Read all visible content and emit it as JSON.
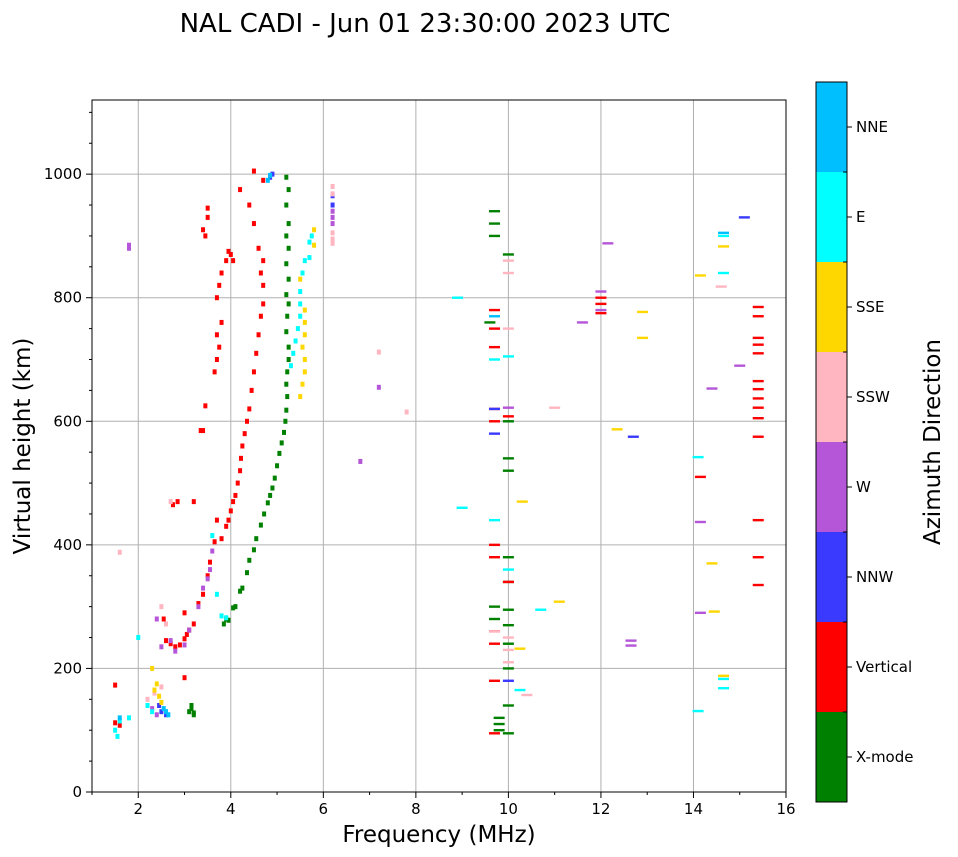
{
  "chart_data": {
    "type": "scatter",
    "title": "NAL CADI - Jun 01 23:30:00 2023 UTC",
    "xlabel": "Frequency (MHz)",
    "ylabel": "Virtual height (km)",
    "xlim": [
      1,
      16
    ],
    "ylim": [
      0,
      1120
    ],
    "xticks": [
      2,
      4,
      6,
      8,
      10,
      12,
      14,
      16
    ],
    "xtick_labels": [
      "2",
      "4",
      "6",
      "8",
      "10",
      "12",
      "14",
      "16"
    ],
    "yticks": [
      0,
      200,
      400,
      600,
      800,
      1000
    ],
    "ytick_labels": [
      "0",
      "200",
      "400",
      "600",
      "800",
      "1000"
    ],
    "grid": true,
    "colorbar": {
      "label": "Azimuth Direction",
      "categories": [
        "X-mode",
        "Vertical",
        "NNW",
        "W",
        "SSW",
        "SSE",
        "E",
        "NNE"
      ],
      "colors": [
        "#008000",
        "#ff0000",
        "#3a3aff",
        "#b556d8",
        "#ffb6c1",
        "#ffd700",
        "#00ffff",
        "#00bfff"
      ]
    },
    "series": [
      {
        "name": "X-mode",
        "points": [
          [
            3.1,
            130
          ],
          [
            3.15,
            135
          ],
          [
            3.2,
            128
          ],
          [
            3.15,
            140
          ],
          [
            3.2,
            125
          ],
          [
            3.85,
            272
          ],
          [
            3.9,
            280
          ],
          [
            3.95,
            278
          ],
          [
            4.05,
            298
          ],
          [
            4.1,
            300
          ],
          [
            4.2,
            325
          ],
          [
            4.25,
            330
          ],
          [
            4.35,
            355
          ],
          [
            4.4,
            375
          ],
          [
            4.5,
            392
          ],
          [
            4.55,
            410
          ],
          [
            4.65,
            432
          ],
          [
            4.72,
            450
          ],
          [
            4.8,
            468
          ],
          [
            4.85,
            480
          ],
          [
            4.9,
            492
          ],
          [
            4.95,
            508
          ],
          [
            5.0,
            528
          ],
          [
            5.05,
            548
          ],
          [
            5.1,
            565
          ],
          [
            5.15,
            582
          ],
          [
            5.18,
            600
          ],
          [
            5.2,
            618
          ],
          [
            5.22,
            640
          ],
          [
            5.2,
            660
          ],
          [
            5.22,
            680
          ],
          [
            5.25,
            700
          ],
          [
            5.25,
            720
          ],
          [
            5.2,
            745
          ],
          [
            5.22,
            770
          ],
          [
            5.25,
            790
          ],
          [
            5.2,
            805
          ],
          [
            5.25,
            830
          ],
          [
            5.2,
            855
          ],
          [
            5.25,
            880
          ],
          [
            5.2,
            900
          ],
          [
            5.25,
            920
          ],
          [
            5.2,
            950
          ],
          [
            5.25,
            975
          ],
          [
            5.2,
            995
          ],
          [
            9.6,
            760
          ],
          [
            9.7,
            300
          ],
          [
            9.7,
            280
          ],
          [
            9.7,
            940
          ],
          [
            9.7,
            920
          ],
          [
            9.7,
            900
          ],
          [
            10.0,
            95
          ],
          [
            10.0,
            140
          ],
          [
            10.0,
            200
          ],
          [
            10.0,
            240
          ],
          [
            10.0,
            270
          ],
          [
            10.0,
            295
          ],
          [
            10.0,
            340
          ],
          [
            10.0,
            380
          ],
          [
            10.0,
            520
          ],
          [
            10.0,
            540
          ],
          [
            10.0,
            600
          ],
          [
            10.0,
            870
          ],
          [
            9.8,
            100
          ],
          [
            9.8,
            110
          ],
          [
            9.8,
            120
          ]
        ]
      },
      {
        "name": "Vertical",
        "points": [
          [
            1.5,
            173
          ],
          [
            1.5,
            112
          ],
          [
            1.6,
            108
          ],
          [
            2.55,
            280
          ],
          [
            2.6,
            245
          ],
          [
            2.7,
            240
          ],
          [
            2.8,
            235
          ],
          [
            2.9,
            238
          ],
          [
            3.0,
            248
          ],
          [
            3.0,
            290
          ],
          [
            3.0,
            185
          ],
          [
            3.05,
            255
          ],
          [
            3.1,
            262
          ],
          [
            3.2,
            272
          ],
          [
            3.3,
            305
          ],
          [
            3.4,
            320
          ],
          [
            3.5,
            350
          ],
          [
            3.55,
            372
          ],
          [
            3.65,
            405
          ],
          [
            3.7,
            440
          ],
          [
            2.75,
            465
          ],
          [
            2.85,
            470
          ],
          [
            3.2,
            470
          ],
          [
            3.35,
            585
          ],
          [
            3.4,
            585
          ],
          [
            3.45,
            625
          ],
          [
            3.5,
            930
          ],
          [
            3.5,
            945
          ],
          [
            3.45,
            900
          ],
          [
            3.4,
            910
          ],
          [
            3.7,
            700
          ],
          [
            3.75,
            720
          ],
          [
            3.7,
            740
          ],
          [
            3.65,
            680
          ],
          [
            3.8,
            760
          ],
          [
            3.7,
            800
          ],
          [
            3.75,
            820
          ],
          [
            3.8,
            840
          ],
          [
            3.9,
            860
          ],
          [
            3.95,
            875
          ],
          [
            4.0,
            870
          ],
          [
            4.05,
            860
          ],
          [
            3.8,
            410
          ],
          [
            3.9,
            430
          ],
          [
            3.95,
            440
          ],
          [
            4.0,
            455
          ],
          [
            4.05,
            470
          ],
          [
            4.1,
            480
          ],
          [
            4.15,
            500
          ],
          [
            4.2,
            520
          ],
          [
            4.22,
            540
          ],
          [
            4.25,
            560
          ],
          [
            4.3,
            580
          ],
          [
            4.35,
            600
          ],
          [
            4.4,
            620
          ],
          [
            4.45,
            650
          ],
          [
            4.5,
            680
          ],
          [
            4.55,
            710
          ],
          [
            4.6,
            740
          ],
          [
            4.65,
            770
          ],
          [
            4.7,
            790
          ],
          [
            4.7,
            820
          ],
          [
            4.65,
            840
          ],
          [
            4.7,
            860
          ],
          [
            4.6,
            880
          ],
          [
            4.5,
            920
          ],
          [
            4.4,
            950
          ],
          [
            4.2,
            975
          ],
          [
            4.5,
            1005
          ],
          [
            4.7,
            990
          ],
          [
            9.7,
            95
          ],
          [
            9.7,
            180
          ],
          [
            9.7,
            240
          ],
          [
            9.7,
            260
          ],
          [
            9.7,
            380
          ],
          [
            9.7,
            400
          ],
          [
            9.7,
            600
          ],
          [
            9.7,
            620
          ],
          [
            9.7,
            720
          ],
          [
            9.7,
            750
          ],
          [
            9.7,
            780
          ],
          [
            10.0,
            608
          ],
          [
            10.0,
            340
          ],
          [
            12.0,
            775
          ],
          [
            12.0,
            790
          ],
          [
            12.0,
            800
          ],
          [
            14.15,
            510
          ],
          [
            15.4,
            335
          ],
          [
            15.4,
            380
          ],
          [
            15.4,
            440
          ],
          [
            15.4,
            575
          ],
          [
            15.4,
            605
          ],
          [
            15.4,
            622
          ],
          [
            15.4,
            637
          ],
          [
            15.4,
            652
          ],
          [
            15.4,
            665
          ],
          [
            15.4,
            710
          ],
          [
            15.4,
            724
          ],
          [
            15.4,
            735
          ],
          [
            15.4,
            770
          ],
          [
            15.4,
            785
          ]
        ]
      },
      {
        "name": "NNW",
        "points": [
          [
            2.5,
            130
          ],
          [
            2.6,
            125
          ],
          [
            2.45,
            140
          ],
          [
            4.85,
            995
          ],
          [
            4.9,
            1000
          ],
          [
            6.2,
            950
          ],
          [
            6.2,
            965
          ],
          [
            9.7,
            580
          ],
          [
            9.7,
            620
          ],
          [
            10.0,
            180
          ],
          [
            12.7,
            575
          ],
          [
            15.1,
            930
          ]
        ]
      },
      {
        "name": "W",
        "points": [
          [
            1.8,
            885
          ],
          [
            1.8,
            880
          ],
          [
            2.4,
            280
          ],
          [
            2.5,
            235
          ],
          [
            2.7,
            245
          ],
          [
            2.8,
            228
          ],
          [
            3.0,
            238
          ],
          [
            3.1,
            262
          ],
          [
            3.3,
            300
          ],
          [
            3.4,
            330
          ],
          [
            3.5,
            345
          ],
          [
            3.55,
            360
          ],
          [
            3.6,
            390
          ],
          [
            2.3,
            135
          ],
          [
            2.4,
            125
          ],
          [
            6.2,
            920
          ],
          [
            6.2,
            930
          ],
          [
            6.2,
            940
          ],
          [
            6.8,
            535
          ],
          [
            7.2,
            655
          ],
          [
            10.0,
            622
          ],
          [
            11.6,
            760
          ],
          [
            12.0,
            780
          ],
          [
            12.0,
            810
          ],
          [
            12.15,
            888
          ],
          [
            12.65,
            237
          ],
          [
            12.65,
            245
          ],
          [
            14.15,
            290
          ],
          [
            14.15,
            437
          ],
          [
            14.4,
            653
          ],
          [
            15.0,
            690
          ]
        ]
      },
      {
        "name": "SSW",
        "points": [
          [
            1.6,
            388
          ],
          [
            2.5,
            300
          ],
          [
            2.6,
            272
          ],
          [
            2.7,
            470
          ],
          [
            2.2,
            150
          ],
          [
            2.35,
            160
          ],
          [
            2.5,
            170
          ],
          [
            6.2,
            980
          ],
          [
            6.2,
            968
          ],
          [
            6.2,
            905
          ],
          [
            6.2,
            895
          ],
          [
            6.2,
            888
          ],
          [
            7.2,
            712
          ],
          [
            7.8,
            615
          ],
          [
            9.7,
            260
          ],
          [
            10.0,
            210
          ],
          [
            10.0,
            230
          ],
          [
            10.0,
            250
          ],
          [
            10.0,
            840
          ],
          [
            10.0,
            860
          ],
          [
            10.0,
            750
          ],
          [
            10.4,
            157
          ],
          [
            11.0,
            622
          ],
          [
            14.6,
            818
          ]
        ]
      },
      {
        "name": "SSE",
        "points": [
          [
            2.3,
            200
          ],
          [
            2.35,
            165
          ],
          [
            2.45,
            155
          ],
          [
            2.5,
            145
          ],
          [
            2.4,
            175
          ],
          [
            5.5,
            640
          ],
          [
            5.55,
            660
          ],
          [
            5.6,
            680
          ],
          [
            5.6,
            700
          ],
          [
            5.55,
            720
          ],
          [
            5.6,
            740
          ],
          [
            5.6,
            760
          ],
          [
            5.6,
            780
          ],
          [
            5.5,
            830
          ],
          [
            5.8,
            910
          ],
          [
            5.8,
            885
          ],
          [
            10.25,
            232
          ],
          [
            10.3,
            470
          ],
          [
            11.1,
            308
          ],
          [
            12.35,
            587
          ],
          [
            12.9,
            735
          ],
          [
            12.9,
            777
          ],
          [
            14.15,
            836
          ],
          [
            14.45,
            292
          ],
          [
            14.4,
            370
          ],
          [
            14.65,
            188
          ],
          [
            14.65,
            883
          ]
        ]
      },
      {
        "name": "E",
        "points": [
          [
            1.5,
            100
          ],
          [
            1.55,
            90
          ],
          [
            1.6,
            115
          ],
          [
            1.8,
            120
          ],
          [
            2.0,
            250
          ],
          [
            2.2,
            140
          ],
          [
            2.3,
            130
          ],
          [
            3.6,
            415
          ],
          [
            3.7,
            320
          ],
          [
            3.8,
            285
          ],
          [
            3.9,
            282
          ],
          [
            5.3,
            690
          ],
          [
            5.35,
            710
          ],
          [
            5.4,
            730
          ],
          [
            5.45,
            750
          ],
          [
            5.5,
            770
          ],
          [
            5.5,
            790
          ],
          [
            5.5,
            810
          ],
          [
            5.55,
            840
          ],
          [
            5.6,
            860
          ],
          [
            5.7,
            890
          ],
          [
            5.75,
            900
          ],
          [
            5.7,
            865
          ],
          [
            8.9,
            800
          ],
          [
            9.0,
            460
          ],
          [
            9.7,
            440
          ],
          [
            9.7,
            700
          ],
          [
            10.0,
            360
          ],
          [
            10.0,
            705
          ],
          [
            10.25,
            165
          ],
          [
            10.7,
            295
          ],
          [
            14.1,
            131
          ],
          [
            14.1,
            542
          ],
          [
            14.65,
            168
          ],
          [
            14.65,
            183
          ],
          [
            14.65,
            840
          ],
          [
            14.65,
            900
          ]
        ]
      },
      {
        "name": "NNE",
        "points": [
          [
            1.6,
            120
          ],
          [
            2.6,
            130
          ],
          [
            2.65,
            125
          ],
          [
            2.55,
            135
          ],
          [
            4.8,
            990
          ],
          [
            4.85,
            998
          ],
          [
            9.7,
            770
          ],
          [
            14.65,
            905
          ]
        ]
      }
    ]
  }
}
